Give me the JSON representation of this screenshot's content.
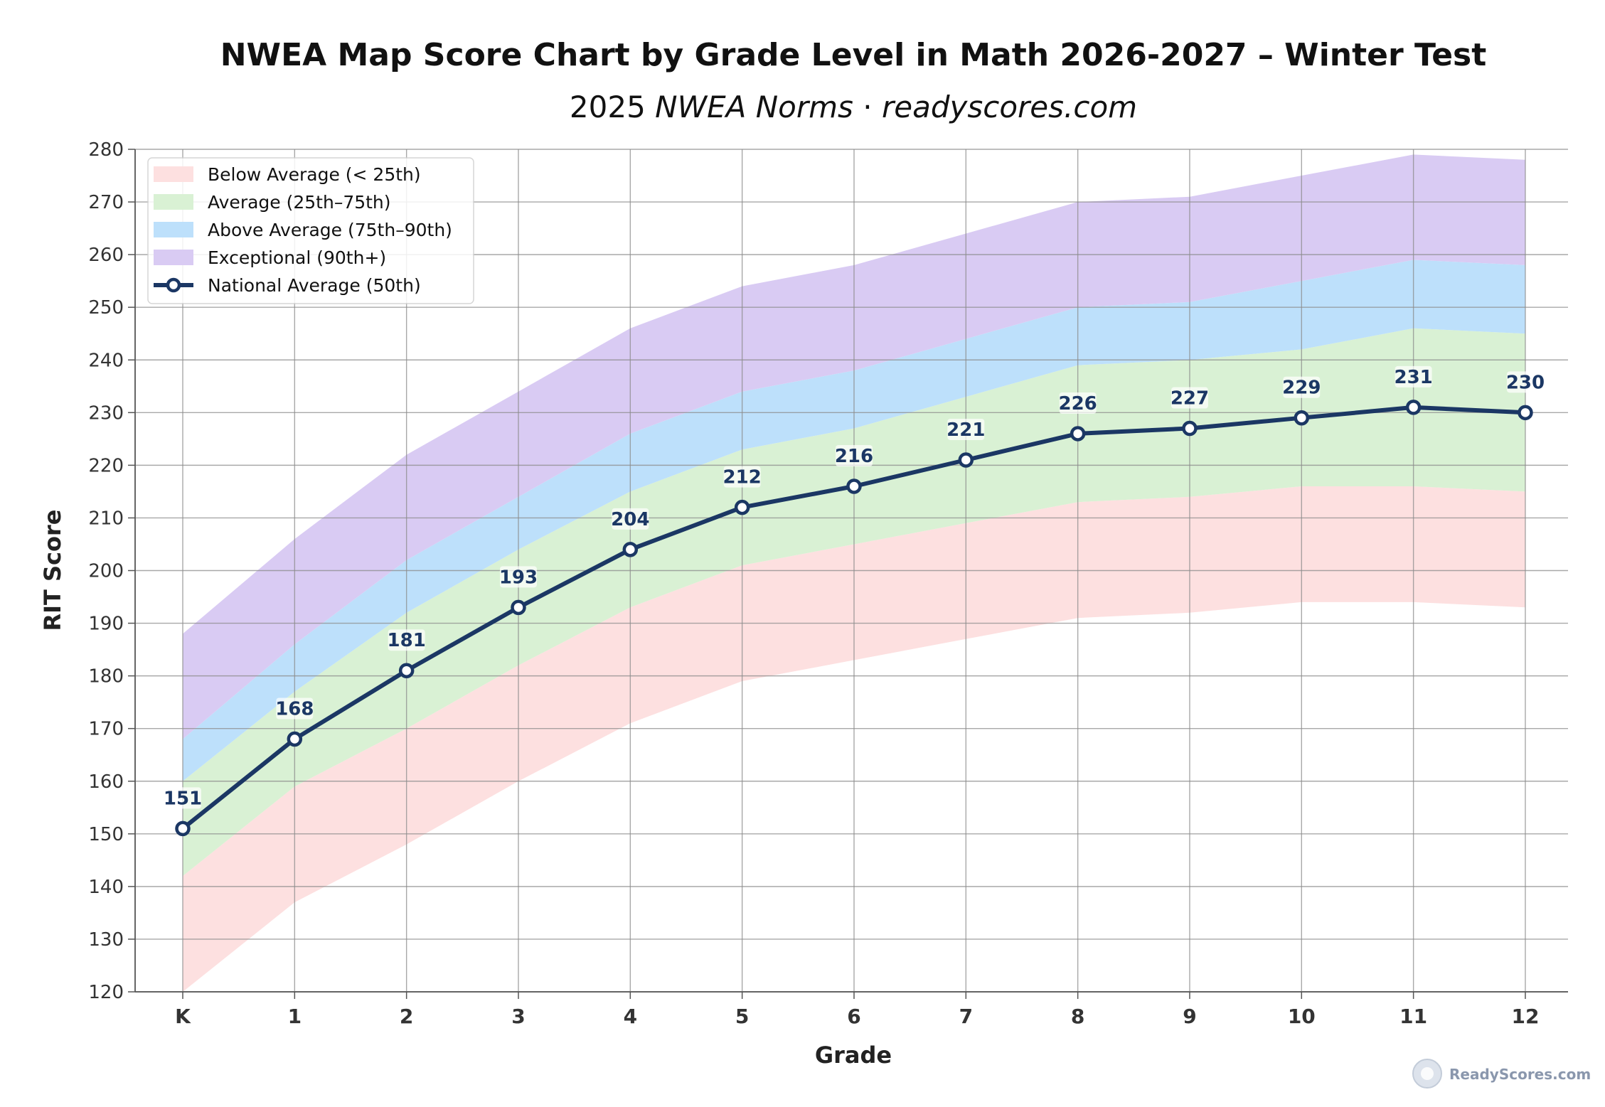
{
  "chart_data": {
    "type": "area",
    "title": "NWEA Map Score Chart by Grade Level in Math 2026-2027 – Winter Test",
    "subtitle_prefix": "2025",
    "subtitle_italic": "NWEA Norms",
    "subtitle_sep": "·",
    "subtitle_site": "readyscores.com",
    "xlabel": "Grade",
    "ylabel": "RIT Score",
    "categories": [
      "K",
      "1",
      "2",
      "3",
      "4",
      "5",
      "6",
      "7",
      "8",
      "9",
      "10",
      "11",
      "12"
    ],
    "ylim": [
      120,
      280
    ],
    "yticks": [
      120,
      130,
      140,
      150,
      160,
      170,
      180,
      190,
      200,
      210,
      220,
      230,
      240,
      250,
      260,
      270,
      280
    ],
    "grid": true,
    "legend_position": "top-left",
    "bands": [
      {
        "name": "Below Average (< 25th)",
        "color": "#fde0e0",
        "lower": [
          120,
          137,
          148,
          160,
          171,
          179,
          183,
          187,
          191,
          192,
          194,
          194,
          193
        ],
        "upper": [
          142,
          159,
          170,
          182,
          193,
          201,
          205,
          209,
          213,
          214,
          216,
          216,
          215
        ]
      },
      {
        "name": "Average (25th–75th)",
        "color": "#d9f1d4",
        "lower": [
          142,
          159,
          170,
          182,
          193,
          201,
          205,
          209,
          213,
          214,
          216,
          216,
          215
        ],
        "upper": [
          160,
          177,
          192,
          204,
          215,
          223,
          227,
          233,
          239,
          240,
          242,
          246,
          245
        ]
      },
      {
        "name": "Above Average (75th–90th)",
        "color": "#bde0fb",
        "lower": [
          160,
          177,
          192,
          204,
          215,
          223,
          227,
          233,
          239,
          240,
          242,
          246,
          245
        ],
        "upper": [
          168,
          186,
          202,
          214,
          226,
          234,
          238,
          244,
          250,
          251,
          255,
          259,
          258
        ]
      },
      {
        "name": "Exceptional (90th+)",
        "color": "#d9cbf3",
        "lower": [
          168,
          186,
          202,
          214,
          226,
          234,
          238,
          244,
          250,
          251,
          255,
          259,
          258
        ],
        "upper": [
          188,
          206,
          222,
          234,
          246,
          254,
          258,
          264,
          270,
          271,
          275,
          279,
          278
        ]
      }
    ],
    "series": [
      {
        "name": "National Average (50th)",
        "color": "#1b3764",
        "values": [
          151,
          168,
          181,
          193,
          204,
          212,
          216,
          221,
          226,
          227,
          229,
          231,
          230
        ]
      }
    ]
  },
  "watermark": "ReadyScores.com"
}
